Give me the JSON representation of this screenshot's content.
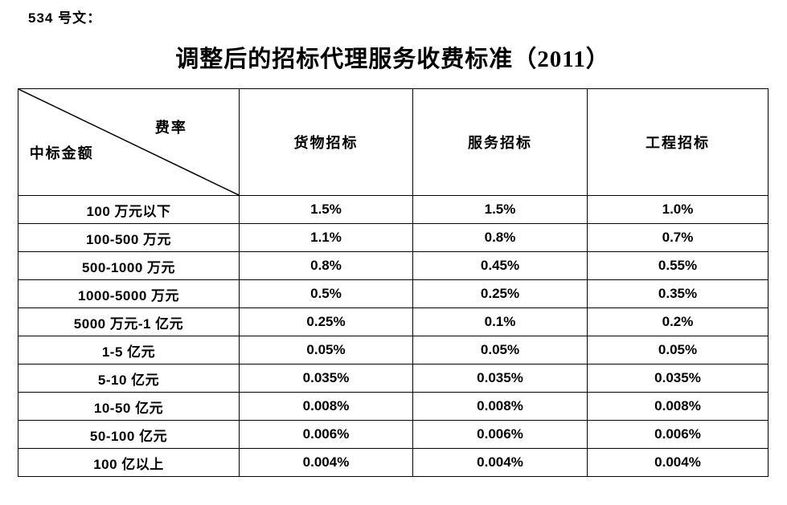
{
  "document": {
    "doc_label": "534 号文：",
    "title": "调整后的招标代理服务收费标准（2011）"
  },
  "table": {
    "corner": {
      "top_right": "费率",
      "bottom_left": "中标金额"
    },
    "columns": [
      "货物招标",
      "服务招标",
      "工程招标"
    ],
    "rows": [
      {
        "label": "100 万元以下",
        "values": [
          "1.5%",
          "1.5%",
          "1.0%"
        ]
      },
      {
        "label": "100-500 万元",
        "values": [
          "1.1%",
          "0.8%",
          "0.7%"
        ]
      },
      {
        "label": "500-1000 万元",
        "values": [
          "0.8%",
          "0.45%",
          "0.55%"
        ]
      },
      {
        "label": "1000-5000 万元",
        "values": [
          "0.5%",
          "0.25%",
          "0.35%"
        ]
      },
      {
        "label": "5000 万元-1 亿元",
        "values": [
          "0.25%",
          "0.1%",
          "0.2%"
        ]
      },
      {
        "label": "1-5 亿元",
        "values": [
          "0.05%",
          "0.05%",
          "0.05%"
        ]
      },
      {
        "label": "5-10 亿元",
        "values": [
          "0.035%",
          "0.035%",
          "0.035%"
        ]
      },
      {
        "label": "10-50 亿元",
        "values": [
          "0.008%",
          "0.008%",
          "0.008%"
        ]
      },
      {
        "label": "50-100 亿元",
        "values": [
          "0.006%",
          "0.006%",
          "0.006%"
        ]
      },
      {
        "label": "100 亿以上",
        "values": [
          "0.004%",
          "0.004%",
          "0.004%"
        ]
      }
    ],
    "line_color": "#000000"
  }
}
